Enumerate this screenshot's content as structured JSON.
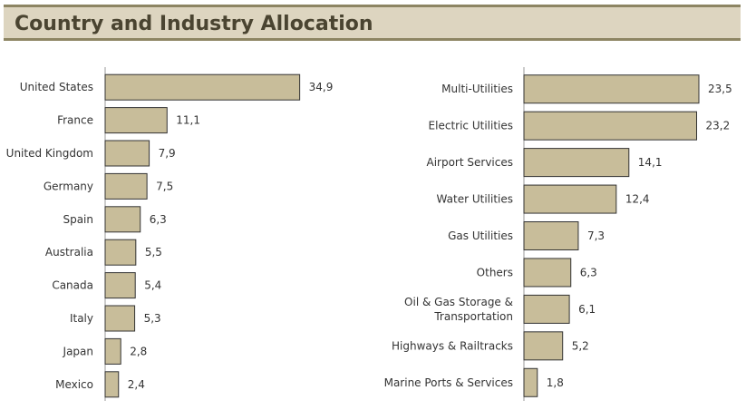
{
  "header": {
    "title": "Country and Industry Allocation"
  },
  "colors": {
    "bar_fill": "#c8bd9a",
    "bar_stroke": "#333333",
    "header_bg": "#ddd5c0",
    "header_text": "#4a4431"
  },
  "chart_data": [
    {
      "type": "bar",
      "orientation": "horizontal",
      "categories": [
        "United States",
        "France",
        "United Kingdom",
        "Germany",
        "Spain",
        "Australia",
        "Canada",
        "Italy",
        "Japan",
        "Mexico"
      ],
      "values": [
        34.9,
        11.1,
        7.9,
        7.5,
        6.3,
        5.5,
        5.4,
        5.3,
        2.8,
        2.4
      ],
      "value_labels": [
        "34,9",
        "11,1",
        "7,9",
        "7,5",
        "6,3",
        "5,5",
        "5,4",
        "5,3",
        "2,8",
        "2,4"
      ],
      "xlim": [
        0,
        40
      ],
      "grid": false
    },
    {
      "type": "bar",
      "orientation": "horizontal",
      "categories": [
        "Multi-Utilities",
        "Electric Utilities",
        "Airport Services",
        "Water Utilities",
        "Gas Utilities",
        "Others",
        "Oil & Gas Storage & Transportation",
        "Highways & Railtracks",
        "Marine Ports & Services"
      ],
      "category_lines": [
        [
          "Multi-Utilities"
        ],
        [
          "Electric Utilities"
        ],
        [
          "Airport Services"
        ],
        [
          "Water Utilities"
        ],
        [
          "Gas Utilities"
        ],
        [
          "Others"
        ],
        [
          "Oil & Gas Storage &",
          "Transportation"
        ],
        [
          "Highways & Railtracks"
        ],
        [
          "Marine Ports & Services"
        ]
      ],
      "values": [
        23.5,
        23.2,
        14.1,
        12.4,
        7.3,
        6.3,
        6.1,
        5.2,
        1.8
      ],
      "value_labels": [
        "23,5",
        "23,2",
        "14,1",
        "12,4",
        "7,3",
        "6,3",
        "6,1",
        "5,2",
        "1,8"
      ],
      "xlim": [
        0,
        23.5
      ],
      "grid": false
    }
  ]
}
